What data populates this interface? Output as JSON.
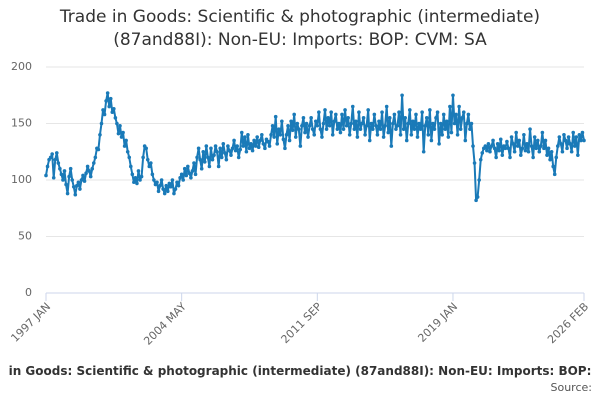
{
  "chart_data": {
    "type": "line",
    "title": "Trade in Goods: Scientific & photographic (intermediate) (87and88I): Non-EU: Imports: BOP: CVM: SA",
    "footer": "in Goods: Scientific & photographic (intermediate) (87and88I): Non-EU: Imports: BOP:",
    "source": "Source:",
    "categories": [
      "1997 JAN",
      null,
      null,
      null,
      null,
      null,
      null,
      null,
      null,
      null,
      null,
      null,
      null,
      null,
      null,
      null,
      null,
      null,
      null,
      null,
      null,
      null,
      null,
      null,
      null,
      null,
      null,
      null,
      null,
      null,
      null,
      null,
      null,
      null,
      null,
      null,
      null,
      null,
      null,
      null,
      null,
      null,
      null,
      null,
      null,
      null,
      null,
      null,
      null,
      null,
      null,
      null,
      null,
      null,
      null,
      null,
      null,
      null,
      null,
      null,
      null,
      null,
      null,
      null,
      null,
      null,
      null,
      null,
      null,
      null,
      null,
      null,
      null,
      null,
      null,
      null,
      null,
      null,
      null,
      null,
      null,
      null,
      null,
      null,
      null,
      null,
      null,
      null,
      "2004 MAY",
      null,
      null,
      null,
      null,
      null,
      null,
      null,
      null,
      null,
      null,
      null,
      null,
      null,
      null,
      null,
      null,
      null,
      null,
      null,
      null,
      null,
      null,
      null,
      null,
      null,
      null,
      null,
      null,
      null,
      null,
      null,
      null,
      null,
      null,
      null,
      null,
      null,
      null,
      null,
      null,
      null,
      null,
      null,
      null,
      null,
      null,
      null,
      null,
      null,
      null,
      null,
      null,
      null,
      null,
      null,
      null,
      null,
      null,
      null,
      null,
      null,
      null,
      null,
      null,
      null,
      null,
      null,
      null,
      null,
      null,
      null,
      null,
      null,
      null,
      null,
      null,
      null,
      null,
      null,
      null,
      null,
      null,
      null,
      null,
      null,
      null,
      null,
      "2011 SEP",
      null,
      null,
      null,
      null,
      null,
      null,
      null,
      null,
      null,
      null,
      null,
      null,
      null,
      null,
      null,
      null,
      null,
      null,
      null,
      null,
      null,
      null,
      null,
      null,
      null,
      null,
      null,
      null,
      null,
      null,
      null,
      null,
      null,
      null,
      null,
      null,
      null,
      null,
      null,
      null,
      null,
      null,
      null,
      null,
      null,
      null,
      null,
      null,
      null,
      null,
      null,
      null,
      null,
      null,
      null,
      null,
      null,
      null,
      null,
      null,
      null,
      null,
      null,
      null,
      null,
      null,
      null,
      null,
      null,
      null,
      null,
      null,
      null,
      null,
      null,
      null,
      null,
      null,
      null,
      null,
      null,
      null,
      null,
      null,
      null,
      null,
      null,
      "2019 JAN",
      null,
      null,
      null,
      null,
      null,
      null,
      null,
      null,
      null,
      null,
      null,
      null,
      null,
      null,
      null,
      null,
      null,
      null,
      null,
      null,
      null,
      null,
      null,
      null,
      null,
      null,
      null,
      null,
      null,
      null,
      null,
      null,
      null,
      null,
      null,
      null,
      null,
      null,
      null,
      null,
      null,
      null,
      null,
      null,
      null,
      null,
      null,
      null,
      null,
      null,
      null,
      null,
      null,
      null,
      null,
      null,
      null,
      null,
      null,
      null,
      null,
      null,
      null,
      null,
      null,
      null,
      null,
      null,
      null,
      null,
      null,
      null,
      null,
      null,
      null,
      null,
      null,
      null,
      null,
      null,
      null,
      null,
      null,
      null,
      "2026 FEB"
    ],
    "series": [
      {
        "color": "#1a7ab8",
        "values": [
          104,
          112,
          118,
          120,
          123,
          102,
          118,
          124,
          115,
          110,
          105,
          100,
          108,
          96,
          88,
          103,
          110,
          100,
          94,
          87,
          95,
          98,
          92,
          100,
          104,
          99,
          106,
          112,
          108,
          103,
          110,
          115,
          120,
          128,
          127,
          140,
          150,
          162,
          158,
          170,
          177,
          165,
          172,
          160,
          163,
          155,
          150,
          141,
          148,
          138,
          142,
          130,
          135,
          125,
          120,
          112,
          105,
          98,
          102,
          97,
          108,
          100,
          103,
          120,
          130,
          128,
          118,
          112,
          115,
          105,
          100,
          96,
          98,
          90,
          95,
          100,
          92,
          88,
          95,
          90,
          97,
          94,
          100,
          88,
          92,
          98,
          95,
          102,
          105,
          100,
          110,
          104,
          112,
          106,
          102,
          108,
          115,
          105,
          120,
          128,
          118,
          110,
          125,
          116,
          130,
          120,
          112,
          128,
          118,
          122,
          130,
          125,
          112,
          128,
          120,
          132,
          124,
          118,
          130,
          126,
          122,
          128,
          135,
          126,
          130,
          120,
          127,
          142,
          130,
          138,
          125,
          140,
          128,
          132,
          126,
          135,
          130,
          138,
          129,
          135,
          140,
          132,
          128,
          136,
          134,
          130,
          140,
          148,
          138,
          156,
          132,
          145,
          140,
          152,
          136,
          128,
          140,
          148,
          135,
          152,
          144,
          158,
          138,
          150,
          145,
          130,
          148,
          155,
          142,
          150,
          138,
          148,
          155,
          145,
          140,
          152,
          148,
          160,
          145,
          138,
          150,
          162,
          145,
          155,
          148,
          160,
          140,
          152,
          158,
          145,
          150,
          142,
          158,
          145,
          162,
          148,
          155,
          140,
          150,
          165,
          145,
          152,
          138,
          160,
          145,
          150,
          155,
          140,
          148,
          162,
          135,
          150,
          145,
          158,
          148,
          140,
          152,
          145,
          160,
          138,
          148,
          165,
          142,
          155,
          130,
          150,
          158,
          145,
          148,
          160,
          140,
          175,
          145,
          155,
          135,
          150,
          162,
          140,
          152,
          145,
          158,
          138,
          150,
          145,
          160,
          125,
          148,
          155,
          140,
          162,
          135,
          150,
          145,
          155,
          160,
          132,
          150,
          140,
          158,
          145,
          152,
          138,
          165,
          142,
          175,
          150,
          158,
          140,
          165,
          145,
          155,
          160,
          135,
          150,
          158,
          145,
          150,
          130,
          115,
          82,
          85,
          100,
          118,
          124,
          128,
          130,
          126,
          132,
          125,
          130,
          135,
          128,
          120,
          132,
          126,
          136,
          122,
          130,
          128,
          134,
          128,
          120,
          138,
          132,
          125,
          142,
          130,
          135,
          122,
          128,
          140,
          126,
          132,
          125,
          145,
          130,
          120,
          138,
          128,
          135,
          125,
          130,
          142,
          128,
          135,
          122,
          128,
          118,
          125,
          112,
          105,
          120,
          130,
          138,
          132,
          125,
          140,
          135,
          128,
          138,
          132,
          125,
          142,
          130,
          138,
          122,
          140,
          135,
          142,
          135
        ]
      }
    ],
    "ylim": [
      0,
      200
    ],
    "yticks": [
      0,
      50,
      100,
      150,
      200
    ],
    "grid": true
  }
}
